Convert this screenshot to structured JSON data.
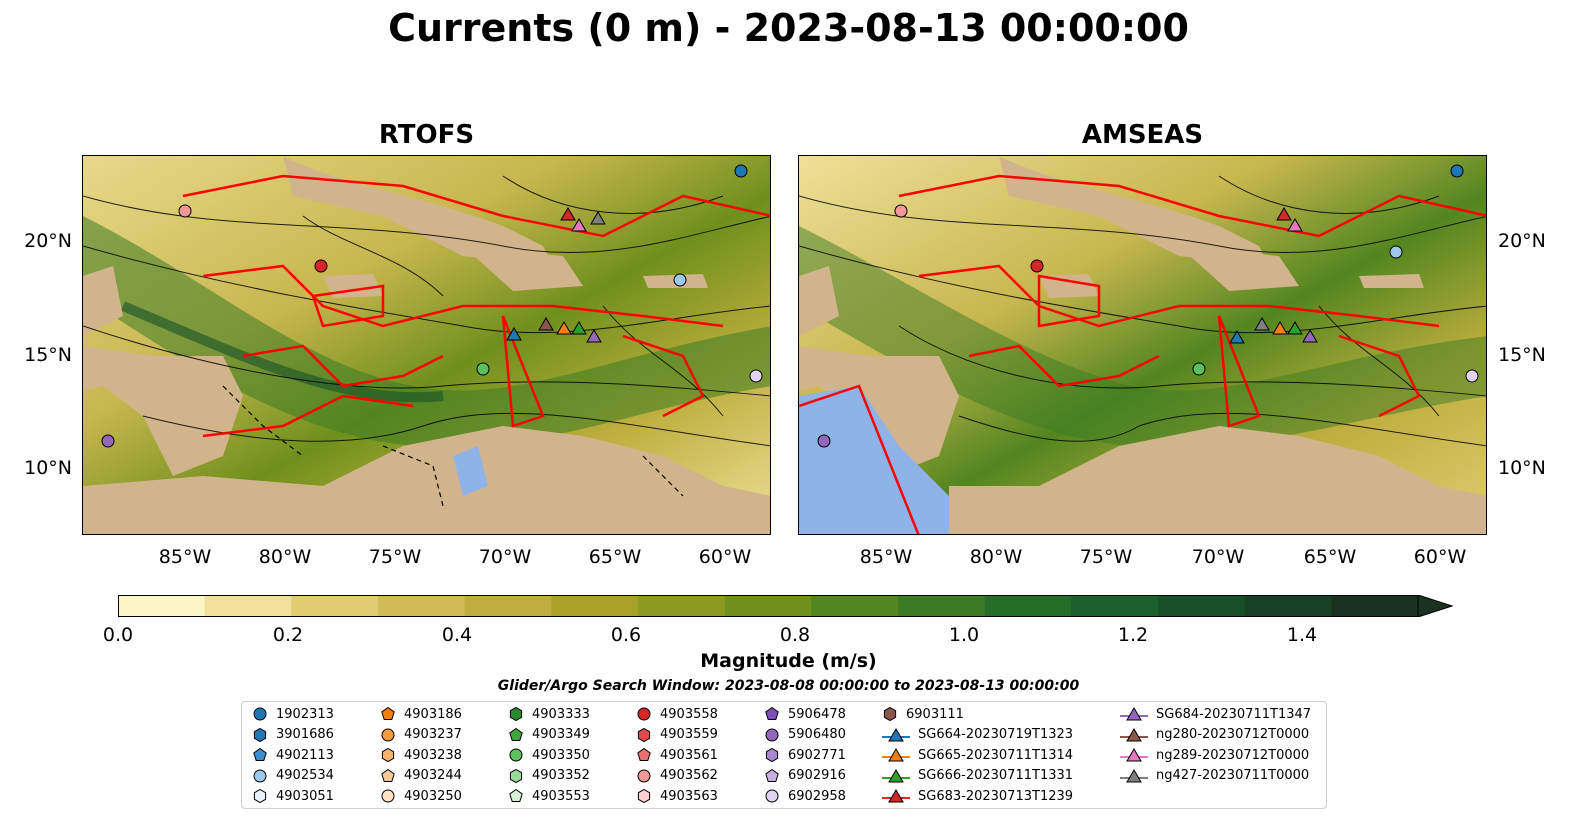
{
  "title": "Currents (0 m) - 2023-08-13 00:00:00",
  "panels": [
    {
      "title": "RTOFS"
    },
    {
      "title": "AMSEAS"
    }
  ],
  "axes": {
    "lat_labels": [
      "20°N",
      "15°N",
      "10°N"
    ],
    "lon_labels": [
      "85°W",
      "80°W",
      "75°W",
      "70°W",
      "65°W",
      "60°W"
    ]
  },
  "colorbar": {
    "label": "Magnitude (m/s)",
    "ticks": [
      "0.0",
      "0.2",
      "0.4",
      "0.6",
      "0.8",
      "1.0",
      "1.2",
      "1.4"
    ],
    "range": [
      0.0,
      1.5
    ],
    "extend": "max",
    "colors": [
      "#fbf6c4",
      "#efe09a",
      "#e1cc73",
      "#d1bb56",
      "#bfae3d",
      "#a8a22a",
      "#8c9a1f",
      "#6f901c",
      "#52861f",
      "#3a7b24",
      "#256e2a",
      "#1a5f2c",
      "#18502a",
      "#184025",
      "#1a3220"
    ]
  },
  "search_window": "Glider/Argo Search Window: 2023-08-08 00:00:00 to 2023-08-13 00:00:00",
  "legend": {
    "columns": [
      [
        {
          "label": "1902313",
          "marker": "circle",
          "color": "#1f77b4"
        },
        {
          "label": "3901686",
          "marker": "hexagon",
          "color": "#1f77b4"
        },
        {
          "label": "4902113",
          "marker": "pentagon",
          "color": "#3b8fd1"
        },
        {
          "label": "4902534",
          "marker": "circle",
          "color": "#9dc8ea"
        },
        {
          "label": "4903051",
          "marker": "hexagon",
          "color": "#e8f2fb"
        }
      ],
      [
        {
          "label": "4903186",
          "marker": "pentagon",
          "color": "#f07f0e"
        },
        {
          "label": "4903237",
          "marker": "circle",
          "color": "#f59b3c"
        },
        {
          "label": "4903238",
          "marker": "hexagon",
          "color": "#f7b36c"
        },
        {
          "label": "4903244",
          "marker": "pentagon",
          "color": "#f9c99a"
        },
        {
          "label": "4903250",
          "marker": "circle",
          "color": "#fde1c6"
        }
      ],
      [
        {
          "label": "4903333",
          "marker": "hexagon",
          "color": "#2a8a2a"
        },
        {
          "label": "4903349",
          "marker": "pentagon",
          "color": "#3ea73e"
        },
        {
          "label": "4903350",
          "marker": "circle",
          "color": "#5cc15c"
        },
        {
          "label": "4903352",
          "marker": "hexagon",
          "color": "#98db98"
        },
        {
          "label": "4903553",
          "marker": "pentagon",
          "color": "#d3f3d3"
        }
      ],
      [
        {
          "label": "4903558",
          "marker": "circle",
          "color": "#d62728"
        },
        {
          "label": "4903559",
          "marker": "hexagon",
          "color": "#e04a4a"
        },
        {
          "label": "4903561",
          "marker": "pentagon",
          "color": "#ea6f6f"
        },
        {
          "label": "4903562",
          "marker": "circle",
          "color": "#f39797"
        },
        {
          "label": "4903563",
          "marker": "hexagon",
          "color": "#fbd0d0"
        }
      ],
      [
        {
          "label": "5906478",
          "marker": "pentagon",
          "color": "#7e4fb8"
        },
        {
          "label": "5906480",
          "marker": "circle",
          "color": "#9467bd"
        },
        {
          "label": "6902771",
          "marker": "hexagon",
          "color": "#ad88d1"
        },
        {
          "label": "6902916",
          "marker": "pentagon",
          "color": "#c7aee3"
        },
        {
          "label": "6902958",
          "marker": "circle",
          "color": "#e3d3f3"
        }
      ],
      [
        {
          "label": "6903111",
          "marker": "hexagon",
          "color": "#8c564b"
        },
        {
          "label": "SG664-20230719T1323",
          "marker": "triangle-line",
          "color": "#1f77b4"
        },
        {
          "label": "SG665-20230711T1314",
          "marker": "triangle-line",
          "color": "#ff7f0e"
        },
        {
          "label": "SG666-20230711T1331",
          "marker": "triangle-line",
          "color": "#2ca02c"
        },
        {
          "label": "SG683-20230713T1239",
          "marker": "triangle-line",
          "color": "#d62728"
        }
      ],
      [
        {
          "label": "SG684-20230711T1347",
          "marker": "triangle-line",
          "color": "#9467bd"
        },
        {
          "label": "ng280-20230712T0000",
          "marker": "triangle-line",
          "color": "#8c564b"
        },
        {
          "label": "ng289-20230712T0000",
          "marker": "triangle-line",
          "color": "#e377c2"
        },
        {
          "label": "ng427-20230711T0000",
          "marker": "triangle-line",
          "color": "#7f7f7f"
        }
      ]
    ]
  }
}
